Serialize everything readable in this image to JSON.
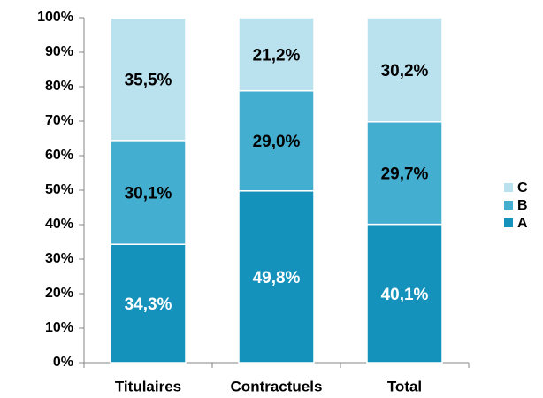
{
  "chart_data": {
    "type": "stacked_bar",
    "categories": [
      "Titulaires",
      "Contractuels",
      "Total"
    ],
    "series": [
      {
        "name": "A",
        "color": "#1592bb",
        "label_color": "#ffffff",
        "values": [
          34.3,
          49.8,
          40.1
        ],
        "value_labels": [
          "34,3%",
          "49,8%",
          "40,1%"
        ]
      },
      {
        "name": "B",
        "color": "#44aed0",
        "label_color": "#000000",
        "values": [
          30.1,
          29.0,
          29.7
        ],
        "value_labels": [
          "30,1%",
          "29,0%",
          "29,7%"
        ]
      },
      {
        "name": "C",
        "color": "#b9e1ee",
        "label_color": "#000000",
        "values": [
          35.5,
          21.2,
          30.2
        ],
        "value_labels": [
          "35,5%",
          "21,2%",
          "30,2%"
        ]
      }
    ],
    "ylim": [
      0,
      100
    ],
    "yticks": [
      {
        "value": 0,
        "label": "0%"
      },
      {
        "value": 10,
        "label": "10%"
      },
      {
        "value": 20,
        "label": "20%"
      },
      {
        "value": 30,
        "label": "30%"
      },
      {
        "value": 40,
        "label": "40%"
      },
      {
        "value": 50,
        "label": "50%"
      },
      {
        "value": 60,
        "label": "60%"
      },
      {
        "value": 70,
        "label": "70%"
      },
      {
        "value": 80,
        "label": "80%"
      },
      {
        "value": 90,
        "label": "90%"
      },
      {
        "value": 100,
        "label": "100%"
      }
    ],
    "grid": false,
    "legend": "right"
  }
}
